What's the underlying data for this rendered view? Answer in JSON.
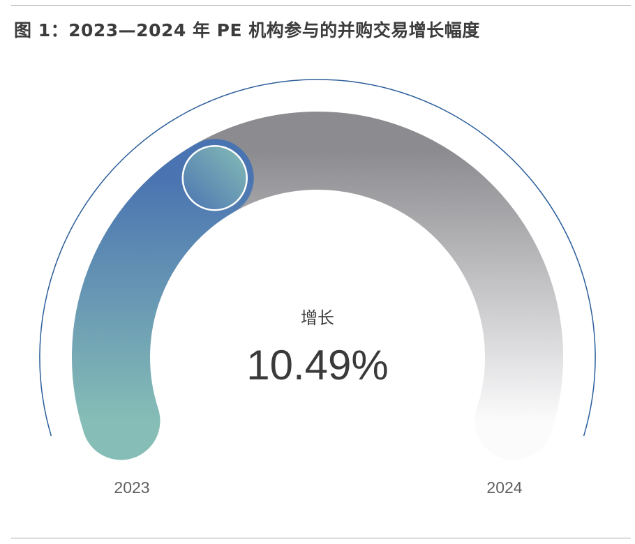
{
  "title": "图 1：2023—2024 年 PE 机构参与的并购交易增长幅度",
  "chart_data": {
    "type": "gauge",
    "title": "图 1：2023—2024 年 PE 机构参与的并购交易增长幅度",
    "center_label": "增长",
    "value_label": "10.49%",
    "value_percent": 10.49,
    "start_label": "2023",
    "end_label": "2024"
  },
  "colors": {
    "progress_start": "#86bdb6",
    "progress_end": "#4a74b1",
    "track_top": "#8c8c90",
    "track_bottom": "#fbfbfc",
    "outer_ring": "#2a5d9a",
    "text_dark": "#3a3a3a",
    "text_muted": "#5f5f5f"
  }
}
